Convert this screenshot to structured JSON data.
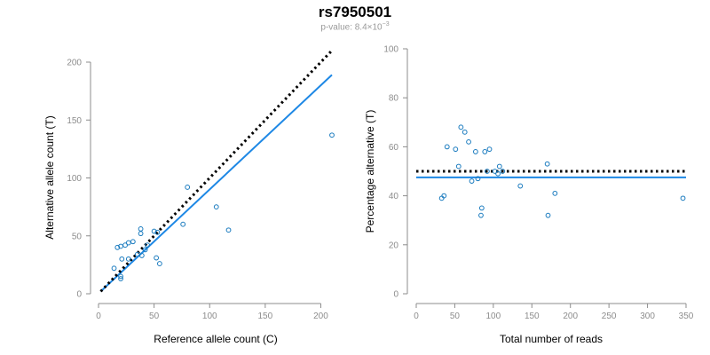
{
  "title": "rs7950501",
  "subtitle": {
    "prefix": "p-value: 8.4×10",
    "exponent": "−3"
  },
  "colors": {
    "fit": "#1e88e5",
    "points": "#1a7bbf",
    "reference": "#000000",
    "axis": "#8c8c8c"
  },
  "chart_data": [
    {
      "type": "scatter",
      "xlabel": "Reference allele count (C)",
      "ylabel": "Alternative allele count (T)",
      "xlim": [
        0,
        210
      ],
      "ylim": [
        0,
        200
      ],
      "xticks": [
        0,
        50,
        100,
        150,
        200
      ],
      "yticks": [
        0,
        50,
        100,
        150,
        200
      ],
      "points": [
        [
          14,
          22
        ],
        [
          17,
          40
        ],
        [
          20,
          41
        ],
        [
          20,
          15
        ],
        [
          20,
          13
        ],
        [
          21,
          30
        ],
        [
          24,
          42
        ],
        [
          27,
          44
        ],
        [
          27,
          30
        ],
        [
          31,
          45
        ],
        [
          35,
          34
        ],
        [
          38,
          56
        ],
        [
          38,
          52
        ],
        [
          39,
          33
        ],
        [
          42,
          38
        ],
        [
          44,
          42
        ],
        [
          50,
          54
        ],
        [
          52,
          31
        ],
        [
          53,
          53
        ],
        [
          55,
          26
        ],
        [
          76,
          60
        ],
        [
          80,
          92
        ],
        [
          106,
          75
        ],
        [
          117,
          55
        ],
        [
          210,
          137
        ]
      ],
      "fit_line": {
        "x": [
          2,
          210
        ],
        "y": [
          2,
          189
        ]
      },
      "reference_line": {
        "x": [
          2,
          210
        ],
        "y": [
          2,
          210
        ]
      }
    },
    {
      "type": "scatter",
      "xlabel": "Total number of reads",
      "ylabel": "Percentage alternative (T)",
      "xlim": [
        0,
        350
      ],
      "ylim": [
        0,
        100
      ],
      "xticks": [
        0,
        50,
        100,
        150,
        200,
        250,
        300,
        350
      ],
      "yticks": [
        0,
        20,
        40,
        60,
        80,
        100
      ],
      "points": [
        [
          33,
          39
        ],
        [
          36,
          40
        ],
        [
          40,
          60
        ],
        [
          51,
          59
        ],
        [
          55,
          52
        ],
        [
          58,
          68
        ],
        [
          63,
          66
        ],
        [
          68,
          62
        ],
        [
          72,
          46
        ],
        [
          77,
          58
        ],
        [
          80,
          47
        ],
        [
          84,
          32
        ],
        [
          85,
          35
        ],
        [
          89,
          58
        ],
        [
          92,
          50
        ],
        [
          95,
          59
        ],
        [
          102,
          50
        ],
        [
          106,
          49
        ],
        [
          108,
          52
        ],
        [
          112,
          50
        ],
        [
          135,
          44
        ],
        [
          170,
          53
        ],
        [
          171,
          32
        ],
        [
          180,
          41
        ],
        [
          346,
          39
        ]
      ],
      "fit_line": {
        "x": [
          0,
          350
        ],
        "y": [
          47.5,
          47.5
        ]
      },
      "reference_line": {
        "x": [
          0,
          350
        ],
        "y": [
          50,
          50
        ]
      }
    }
  ]
}
